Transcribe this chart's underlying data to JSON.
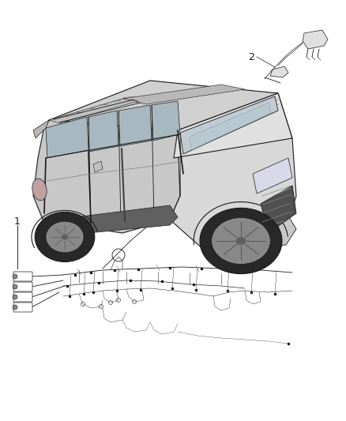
{
  "background_color": "#ffffff",
  "fig_width": 4.38,
  "fig_height": 5.33,
  "dpi": 100,
  "label_1": "1",
  "label_2": "2",
  "line_color": "#1a1a1a",
  "light_gray": "#e8e8e8",
  "mid_gray": "#b0b0b0",
  "dark_gray": "#404040",
  "roof_color": "#c8c8c8",
  "body_color": "#d8d8d8",
  "window_color": "#b8c8d0",
  "black": "#111111"
}
